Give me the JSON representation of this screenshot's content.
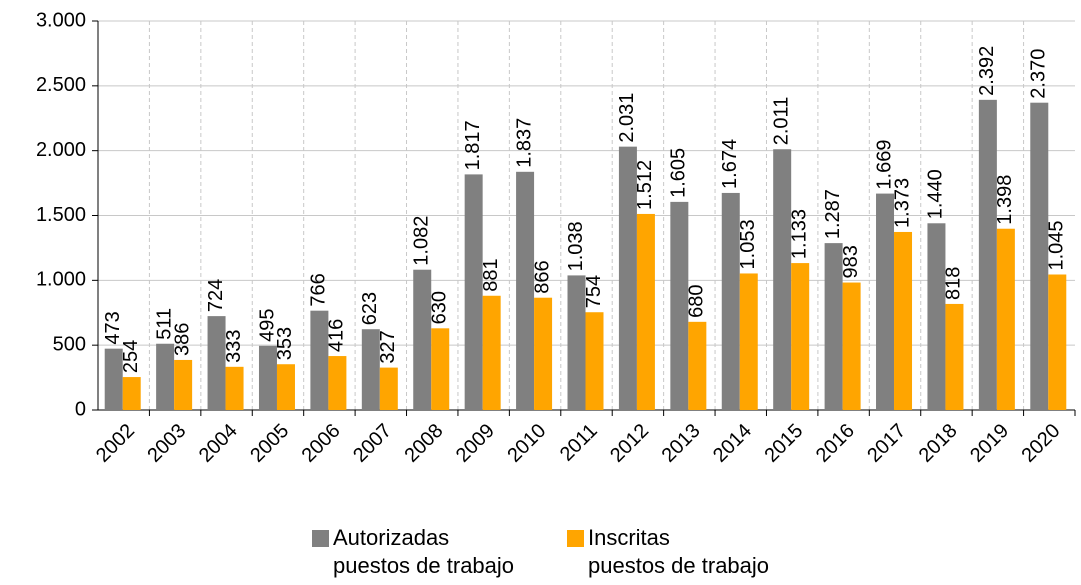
{
  "chart_data": {
    "type": "bar",
    "categories": [
      "2002",
      "2003",
      "2004",
      "2005",
      "2006",
      "2007",
      "2008",
      "2009",
      "2010",
      "2011",
      "2012",
      "2013",
      "2014",
      "2015",
      "2016",
      "2017",
      "2018",
      "2019",
      "2020"
    ],
    "series": [
      {
        "name": "Autorizadas\npuestos de trabajo",
        "color": "#808080",
        "values": [
          473,
          511,
          724,
          495,
          766,
          623,
          1082,
          1817,
          1837,
          1038,
          2031,
          1605,
          1674,
          2011,
          1287,
          1669,
          1440,
          2392,
          2370
        ],
        "value_labels": [
          "473",
          "511",
          "724",
          "495",
          "766",
          "623",
          "1.082",
          "1.817",
          "1.837",
          "1.038",
          "2.031",
          "1.605",
          "1.674",
          "2.011",
          "1.287",
          "1.669",
          "1.440",
          "2.392",
          "2.370"
        ]
      },
      {
        "name": "Inscritas\npuestos de trabajo",
        "color": "#ffa500",
        "values": [
          254,
          386,
          333,
          353,
          416,
          327,
          630,
          881,
          866,
          754,
          1512,
          680,
          1053,
          1133,
          983,
          1373,
          818,
          1398,
          1045
        ],
        "value_labels": [
          "254",
          "386",
          "333",
          "353",
          "416",
          "327",
          "630",
          "881",
          "866",
          "754",
          "1.512",
          "680",
          "1.053",
          "1.133",
          "983",
          "1.373",
          "818",
          "1.398",
          "1.045"
        ]
      }
    ],
    "ylim": [
      0,
      3000
    ],
    "yticks": [
      0,
      500,
      {
        "value": 1000,
        "label": "1.000"
      },
      {
        "value": 1500,
        "label": "1.500"
      },
      {
        "value": 2000,
        "label": "2.000"
      },
      {
        "value": 2500,
        "label": "2.500"
      },
      {
        "value": 3000,
        "label": "3.000"
      }
    ],
    "grid": true,
    "legend": "bottom"
  }
}
